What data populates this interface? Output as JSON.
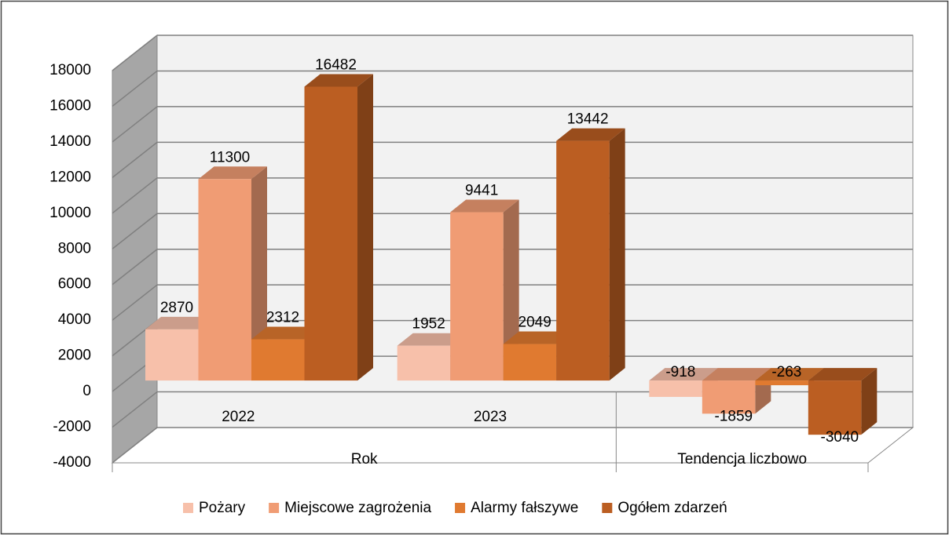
{
  "chart_data": {
    "type": "bar3d",
    "categories": [
      "2022",
      "2023",
      null
    ],
    "category_groups": [
      {
        "label": "Rok",
        "count": 2
      },
      {
        "label": "Tendencja liczbowo",
        "count": 1
      }
    ],
    "series": [
      {
        "name": "Pożary",
        "color": "#f7c0aa",
        "values": [
          2870,
          1952,
          -918
        ]
      },
      {
        "name": "Miejscowe zagrożenia",
        "color": "#f09c74",
        "values": [
          11300,
          9441,
          -1859
        ]
      },
      {
        "name": "Alarmy fałszywe",
        "color": "#e07a30",
        "values": [
          2312,
          2049,
          -263
        ]
      },
      {
        "name": "Ogółem zdarzeń",
        "color": "#bb5e22",
        "values": [
          16482,
          13442,
          -3040
        ]
      }
    ],
    "ylim": [
      -4000,
      18000
    ],
    "yticks": [
      -4000,
      -2000,
      0,
      2000,
      4000,
      6000,
      8000,
      10000,
      12000,
      14000,
      16000,
      18000
    ],
    "grid": true,
    "legend": "bottom"
  }
}
